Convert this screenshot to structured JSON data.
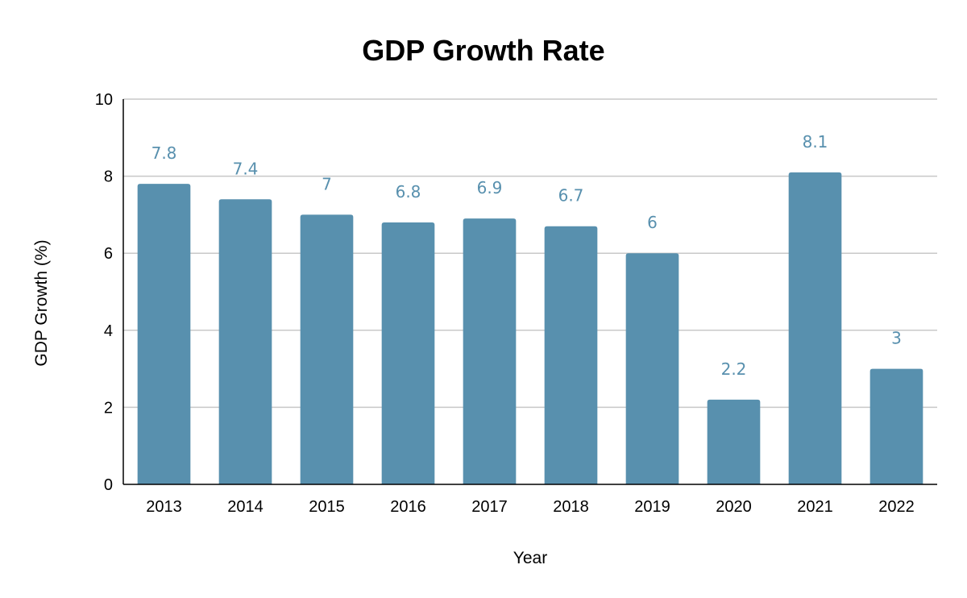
{
  "chart_data": {
    "type": "bar",
    "title": "GDP Growth Rate",
    "xlabel": "Year",
    "ylabel": "GDP Growth (%)",
    "categories": [
      "2013",
      "2014",
      "2015",
      "2016",
      "2017",
      "2018",
      "2019",
      "2020",
      "2021",
      "2022"
    ],
    "values": [
      7.8,
      7.4,
      7,
      6.8,
      6.9,
      6.7,
      6,
      2.2,
      8.1,
      3
    ],
    "data_labels": [
      "7.8",
      "7.4",
      "7",
      "6.8",
      "6.9",
      "6.7",
      "6",
      "2.2",
      "8.1",
      "3"
    ],
    "ylim": [
      0,
      10
    ],
    "yticks": [
      "0",
      "2",
      "4",
      "6",
      "8",
      "10"
    ],
    "grid": true,
    "legend": "none",
    "colors": {
      "bar": "#5890ae",
      "label": "#5890ae"
    }
  }
}
